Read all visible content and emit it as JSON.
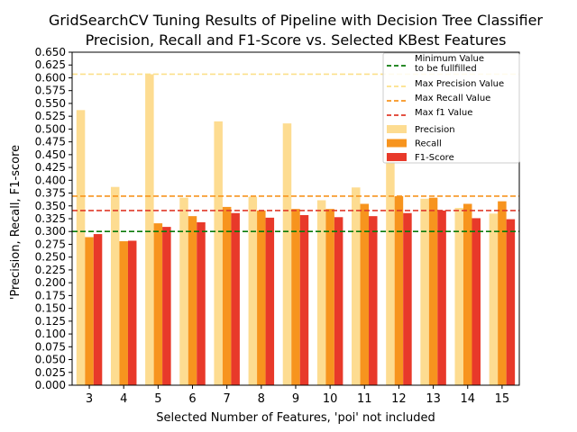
{
  "chart_data": {
    "type": "bar",
    "title_line1": "GridSearchCV Tuning Results of Pipeline with Decision Tree Classifier",
    "title_line2": "Precision, Recall and F1-Score vs. Selected KBest Features",
    "xlabel": "Selected Number of Features, 'poi' not included",
    "ylabel": "'Precision, Recall, F1-score",
    "ylim": [
      0,
      0.65
    ],
    "yticks": [
      "0.000",
      "0.025",
      "0.050",
      "0.075",
      "0.100",
      "0.125",
      "0.150",
      "0.175",
      "0.200",
      "0.225",
      "0.250",
      "0.275",
      "0.300",
      "0.325",
      "0.350",
      "0.375",
      "0.400",
      "0.425",
      "0.450",
      "0.475",
      "0.500",
      "0.525",
      "0.550",
      "0.575",
      "0.600",
      "0.625",
      "0.650"
    ],
    "categories": [
      "3",
      "4",
      "5",
      "6",
      "7",
      "8",
      "9",
      "10",
      "11",
      "12",
      "13",
      "14",
      "15"
    ],
    "series": [
      {
        "name": "Precision",
        "color": "#fddc91",
        "values": [
          0.537,
          0.387,
          0.607,
          0.366,
          0.515,
          0.368,
          0.511,
          0.361,
          0.386,
          0.453,
          0.364,
          0.346,
          0.335
        ]
      },
      {
        "name": "Recall",
        "color": "#f7941e",
        "values": [
          0.289,
          0.281,
          0.316,
          0.33,
          0.348,
          0.341,
          0.344,
          0.344,
          0.354,
          0.369,
          0.366,
          0.354,
          0.359
        ]
      },
      {
        "name": "F1-Score",
        "color": "#e8392a",
        "values": [
          0.295,
          0.282,
          0.309,
          0.318,
          0.336,
          0.327,
          0.332,
          0.328,
          0.33,
          0.336,
          0.341,
          0.326,
          0.324
        ]
      }
    ],
    "reference_lines": [
      {
        "label": "Minimum Value\nto be fullfilled",
        "value": 0.3,
        "color": "#0a7a0a",
        "dash": "6,3"
      },
      {
        "label": "Max Precision Value",
        "value": 0.607,
        "color": "#fbe08a",
        "dash": "6,3"
      },
      {
        "label": "Max Recall Value",
        "value": 0.369,
        "color": "#f7941e",
        "dash": "6,3"
      },
      {
        "label": "Max f1 Value",
        "value": 0.341,
        "color": "#e03a2a",
        "dash": "6,3"
      }
    ],
    "legend_position": "top-right",
    "grid": false
  }
}
